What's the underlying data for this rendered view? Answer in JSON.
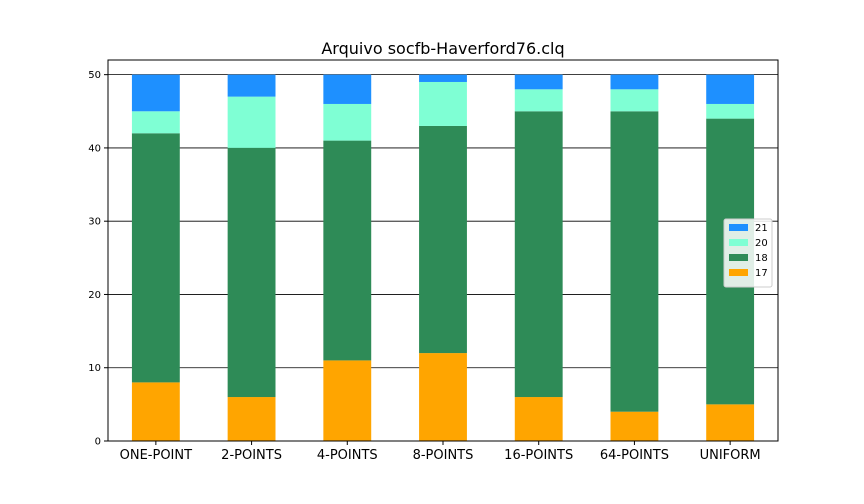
{
  "chart_data": {
    "type": "bar",
    "stacked": true,
    "title": "Arquivo socfb-Haverford76.clq",
    "xlabel": "",
    "ylabel": "",
    "categories": [
      "ONE-POINT",
      "2-POINTS",
      "4-POINTS",
      "8-POINTS",
      "16-POINTS",
      "64-POINTS",
      "UNIFORM"
    ],
    "ylim": [
      0,
      52
    ],
    "yticks": [
      0,
      10,
      20,
      30,
      40,
      50
    ],
    "grid": "horizontal",
    "legend_position": "right",
    "series": [
      {
        "name": "17",
        "color": "#ffa500",
        "values": [
          8,
          6,
          11,
          12,
          6,
          4,
          5
        ]
      },
      {
        "name": "18",
        "color": "#2e8b57",
        "values": [
          34,
          34,
          30,
          31,
          39,
          41,
          39
        ]
      },
      {
        "name": "20",
        "color": "#7fffd4",
        "values": [
          3,
          7,
          5,
          6,
          3,
          3,
          2
        ]
      },
      {
        "name": "21",
        "color": "#1e90ff",
        "values": [
          5,
          3,
          4,
          1,
          2,
          2,
          4
        ]
      }
    ]
  }
}
